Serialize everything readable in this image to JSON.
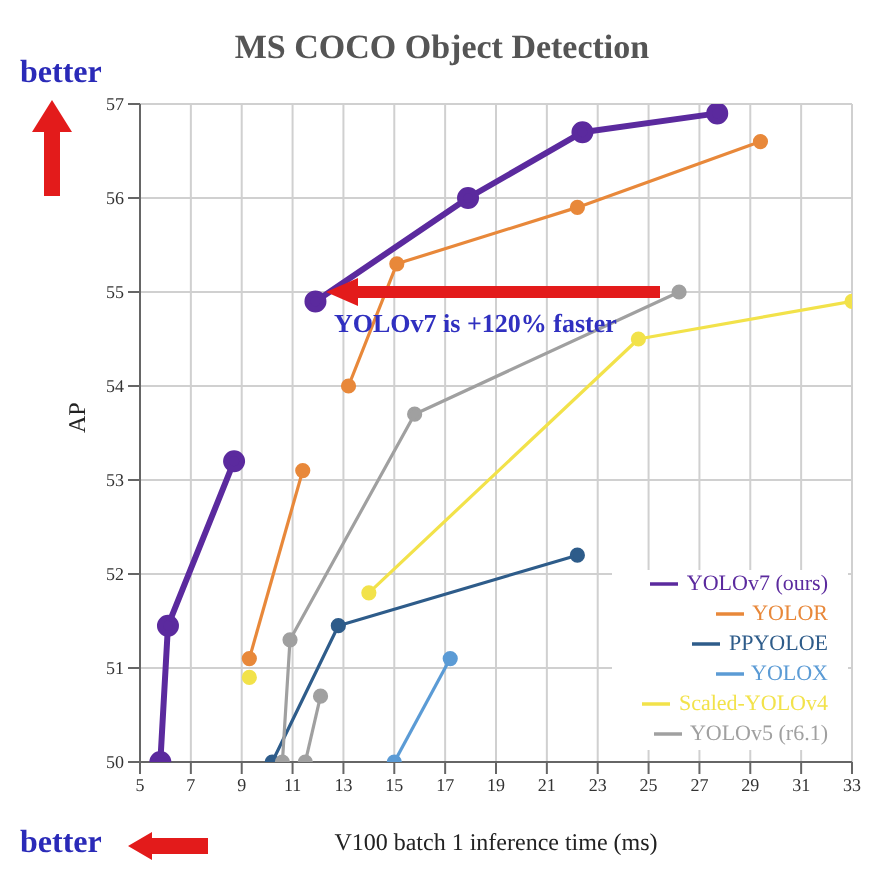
{
  "chart_data": {
    "type": "line",
    "title": "MS COCO Object Detection",
    "xlabel": "V100 batch 1 inference time (ms)",
    "ylabel": "AP",
    "xlim": [
      5,
      33
    ],
    "xticks": [
      5,
      7,
      9,
      11,
      13,
      15,
      17,
      19,
      21,
      23,
      25,
      27,
      29,
      31,
      33
    ],
    "ylim": [
      50,
      57
    ],
    "yticks": [
      50,
      51,
      52,
      53,
      54,
      55,
      56,
      57
    ],
    "grid": true,
    "legend": "bottom right",
    "marker": "circle",
    "annotations": [
      "better",
      "better",
      {
        "text": "YOLOv7 is +120% faster",
        "x": 12,
        "y": 55
      }
    ],
    "series": [
      {
        "name": "YOLOv7 (ours)",
        "color": "#5b2a9e",
        "x": [
          11.9,
          17.9,
          22.4,
          27.7
        ],
        "values": [
          54.9,
          56.0,
          56.7,
          56.9
        ]
      },
      {
        "name": "YOLOR",
        "color": "#e8883a",
        "x": [
          13.2,
          15.1,
          22.2,
          29.4
        ],
        "values": [
          54.0,
          55.3,
          55.9,
          56.6
        ]
      },
      {
        "name": "PPYOLOE",
        "color": "#2e5c8a",
        "x": [
          10.2,
          12.8,
          22.2
        ],
        "values": [
          50,
          51.45,
          52.2
        ]
      },
      {
        "name": "YOLOX",
        "color": "#5b9bd5",
        "x": [
          15,
          17.2
        ],
        "values": [
          50,
          51.1
        ]
      },
      {
        "name": "Scaled-YOLOv4",
        "color": "#f2e24a",
        "x": [
          14,
          24.6,
          33
        ],
        "values": [
          51.8,
          54.5,
          54.9
        ]
      },
      {
        "name": "YOLOv5 (r6.1)",
        "color": "#a0a0a0",
        "x": [
          10.6,
          10.9,
          15.8,
          26.2
        ],
        "values": [
          50,
          51.3,
          53.7,
          55.0
        ]
      },
      {
        "color": "#5b2a9e",
        "x": [
          5.8,
          6.1,
          8.7
        ],
        "values": [
          50,
          51.45,
          53.2
        ]
      },
      {
        "color": "#e8883a",
        "x": [
          9.3,
          11.4
        ],
        "values": [
          51.1,
          53.1
        ]
      },
      {
        "color": "#f2e24a",
        "x": [
          9.3
        ],
        "values": [
          50.9
        ]
      },
      {
        "color": "#a0a0a0",
        "x": [
          11.5,
          12.1
        ],
        "values": [
          50,
          50.7
        ]
      }
    ]
  }
}
